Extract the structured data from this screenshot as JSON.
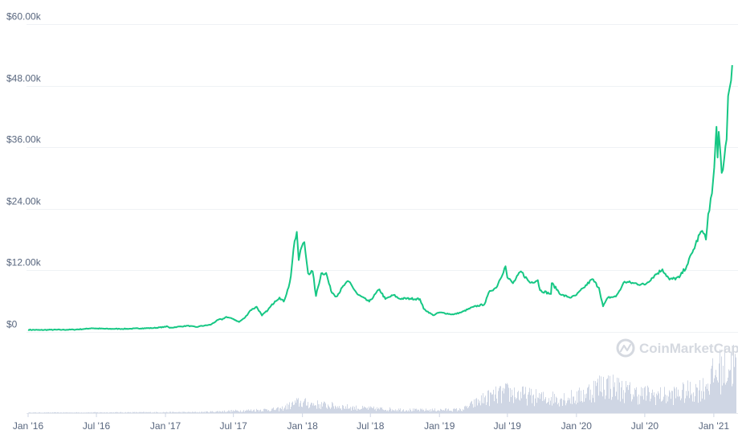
{
  "chart_data": {
    "type": "line",
    "title": "",
    "xlabel": "",
    "ylabel": "",
    "x_ticks": [
      "Jan '16",
      "Jul '16",
      "Jan '17",
      "Jul '17",
      "Jan '18",
      "Jul '18",
      "Jan '19",
      "Jul '19",
      "Jan '20",
      "Jul '20",
      "Jan '21"
    ],
    "y_ticks": [
      "$0",
      "$12.00k",
      "$24.00k",
      "$36.00k",
      "$48.00k",
      "$60.00k"
    ],
    "ylim": [
      0,
      60000
    ],
    "xlim": [
      "2016-01-01",
      "2021-02-28"
    ],
    "grid": true,
    "line_color": "#16c784",
    "volume_color": "#cfd6e4",
    "series": [
      {
        "values": [
          {
            "x": "2016-01-01",
            "y": 430
          },
          {
            "x": "2016-02-01",
            "y": 370
          },
          {
            "x": "2016-03-01",
            "y": 420
          },
          {
            "x": "2016-04-01",
            "y": 420
          },
          {
            "x": "2016-05-01",
            "y": 450
          },
          {
            "x": "2016-06-01",
            "y": 580
          },
          {
            "x": "2016-06-18",
            "y": 740
          },
          {
            "x": "2016-07-01",
            "y": 670
          },
          {
            "x": "2016-08-01",
            "y": 600
          },
          {
            "x": "2016-09-01",
            "y": 600
          },
          {
            "x": "2016-10-01",
            "y": 620
          },
          {
            "x": "2016-11-01",
            "y": 720
          },
          {
            "x": "2016-12-01",
            "y": 760
          },
          {
            "x": "2017-01-01",
            "y": 990
          },
          {
            "x": "2017-01-05",
            "y": 1130
          },
          {
            "x": "2017-01-12",
            "y": 800
          },
          {
            "x": "2017-02-01",
            "y": 980
          },
          {
            "x": "2017-03-01",
            "y": 1200
          },
          {
            "x": "2017-03-25",
            "y": 950
          },
          {
            "x": "2017-04-01",
            "y": 1090
          },
          {
            "x": "2017-05-01",
            "y": 1400
          },
          {
            "x": "2017-05-25",
            "y": 2500
          },
          {
            "x": "2017-06-01",
            "y": 2400
          },
          {
            "x": "2017-06-12",
            "y": 2950
          },
          {
            "x": "2017-07-01",
            "y": 2500
          },
          {
            "x": "2017-07-16",
            "y": 1950
          },
          {
            "x": "2017-08-01",
            "y": 2800
          },
          {
            "x": "2017-08-15",
            "y": 4200
          },
          {
            "x": "2017-09-01",
            "y": 4900
          },
          {
            "x": "2017-09-15",
            "y": 3200
          },
          {
            "x": "2017-10-01",
            "y": 4300
          },
          {
            "x": "2017-10-20",
            "y": 6000
          },
          {
            "x": "2017-11-01",
            "y": 6700
          },
          {
            "x": "2017-11-12",
            "y": 5900
          },
          {
            "x": "2017-11-25",
            "y": 8700
          },
          {
            "x": "2017-12-01",
            "y": 10900
          },
          {
            "x": "2017-12-08",
            "y": 16000
          },
          {
            "x": "2017-12-17",
            "y": 19500
          },
          {
            "x": "2017-12-22",
            "y": 14000
          },
          {
            "x": "2017-12-27",
            "y": 16000
          },
          {
            "x": "2018-01-06",
            "y": 17500
          },
          {
            "x": "2018-01-16",
            "y": 11400
          },
          {
            "x": "2018-01-28",
            "y": 11800
          },
          {
            "x": "2018-02-06",
            "y": 7000
          },
          {
            "x": "2018-02-20",
            "y": 11400
          },
          {
            "x": "2018-03-05",
            "y": 11500
          },
          {
            "x": "2018-03-18",
            "y": 8000
          },
          {
            "x": "2018-04-01",
            "y": 6900
          },
          {
            "x": "2018-04-25",
            "y": 9400
          },
          {
            "x": "2018-05-05",
            "y": 9800
          },
          {
            "x": "2018-05-28",
            "y": 7300
          },
          {
            "x": "2018-06-28",
            "y": 5900
          },
          {
            "x": "2018-07-25",
            "y": 8300
          },
          {
            "x": "2018-08-10",
            "y": 6400
          },
          {
            "x": "2018-09-01",
            "y": 7200
          },
          {
            "x": "2018-09-15",
            "y": 6500
          },
          {
            "x": "2018-10-15",
            "y": 6500
          },
          {
            "x": "2018-11-10",
            "y": 6400
          },
          {
            "x": "2018-11-20",
            "y": 4500
          },
          {
            "x": "2018-12-15",
            "y": 3250
          },
          {
            "x": "2019-01-01",
            "y": 3800
          },
          {
            "x": "2019-02-07",
            "y": 3400
          },
          {
            "x": "2019-03-01",
            "y": 3850
          },
          {
            "x": "2019-04-02",
            "y": 4900
          },
          {
            "x": "2019-05-01",
            "y": 5400
          },
          {
            "x": "2019-05-15",
            "y": 8000
          },
          {
            "x": "2019-06-01",
            "y": 8600
          },
          {
            "x": "2019-06-26",
            "y": 12800
          },
          {
            "x": "2019-07-01",
            "y": 10600
          },
          {
            "x": "2019-07-16",
            "y": 9500
          },
          {
            "x": "2019-08-06",
            "y": 11800
          },
          {
            "x": "2019-08-30",
            "y": 9600
          },
          {
            "x": "2019-09-20",
            "y": 10100
          },
          {
            "x": "2019-09-26",
            "y": 8100
          },
          {
            "x": "2019-10-25",
            "y": 7400
          },
          {
            "x": "2019-10-27",
            "y": 9500
          },
          {
            "x": "2019-11-22",
            "y": 7200
          },
          {
            "x": "2019-12-18",
            "y": 6700
          },
          {
            "x": "2020-01-01",
            "y": 7200
          },
          {
            "x": "2020-01-20",
            "y": 8600
          },
          {
            "x": "2020-02-12",
            "y": 10300
          },
          {
            "x": "2020-03-01",
            "y": 8600
          },
          {
            "x": "2020-03-12",
            "y": 5000
          },
          {
            "x": "2020-03-25",
            "y": 6700
          },
          {
            "x": "2020-04-15",
            "y": 6900
          },
          {
            "x": "2020-04-30",
            "y": 8700
          },
          {
            "x": "2020-05-08",
            "y": 9800
          },
          {
            "x": "2020-06-01",
            "y": 9500
          },
          {
            "x": "2020-07-01",
            "y": 9200
          },
          {
            "x": "2020-07-27",
            "y": 11000
          },
          {
            "x": "2020-08-17",
            "y": 12200
          },
          {
            "x": "2020-09-05",
            "y": 10200
          },
          {
            "x": "2020-10-01",
            "y": 10600
          },
          {
            "x": "2020-10-21",
            "y": 12900
          },
          {
            "x": "2020-11-05",
            "y": 15500
          },
          {
            "x": "2020-11-24",
            "y": 19000
          },
          {
            "x": "2020-12-01",
            "y": 19700
          },
          {
            "x": "2020-12-11",
            "y": 18000
          },
          {
            "x": "2020-12-17",
            "y": 23000
          },
          {
            "x": "2020-12-27",
            "y": 27000
          },
          {
            "x": "2021-01-02",
            "y": 32000
          },
          {
            "x": "2021-01-08",
            "y": 40000
          },
          {
            "x": "2021-01-11",
            "y": 34000
          },
          {
            "x": "2021-01-14",
            "y": 39000
          },
          {
            "x": "2021-01-22",
            "y": 31000
          },
          {
            "x": "2021-01-29",
            "y": 34000
          },
          {
            "x": "2021-02-04",
            "y": 37500
          },
          {
            "x": "2021-02-08",
            "y": 46000
          },
          {
            "x": "2021-02-12",
            "y": 47500
          },
          {
            "x": "2021-02-16",
            "y": 49000
          },
          {
            "x": "2021-02-19",
            "y": 52000
          }
        ]
      }
    ],
    "volume_note": ""
  },
  "watermark": {
    "text": "CoinMarketCap"
  }
}
